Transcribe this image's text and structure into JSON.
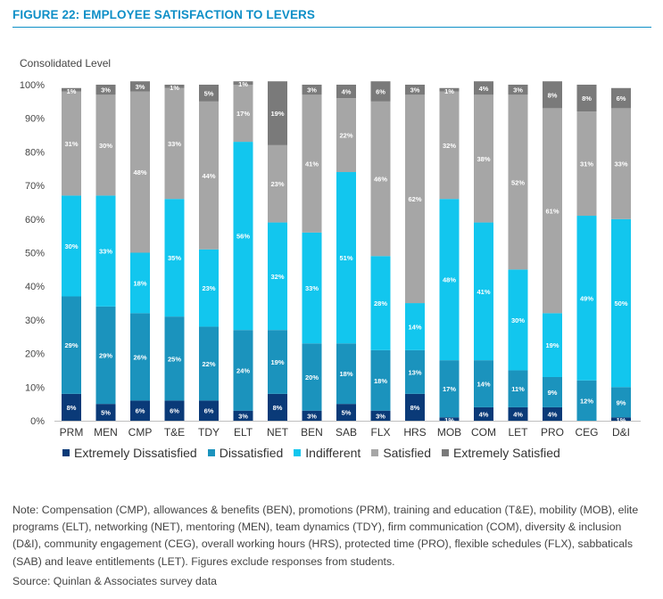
{
  "figure": {
    "title": "FIGURE 22: EMPLOYEE SATISFACTION TO LEVERS",
    "note": "Note: Compensation (CMP), allowances & benefits (BEN), promotions (PRM), training and education (T&E), mobility (MOB), elite programs (ELT), networking (NET), mentoring (MEN), team dynamics (TDY), firm communication (COM), diversity & inclusion (D&I), community engagement (CEG), overall working hours (HRS), protected time (PRO), flexible schedules (FLX), sabbaticals (SAB) and leave entitlements (LET). Figures exclude responses from students.",
    "source": "Source: Quinlan & Associates survey data"
  },
  "chart_data": {
    "type": "bar",
    "stacked": true,
    "percent": true,
    "ylabel": "Consolidated Level",
    "ylim": [
      0,
      100
    ],
    "yticks": [
      "0%",
      "10%",
      "20%",
      "30%",
      "40%",
      "50%",
      "60%",
      "70%",
      "80%",
      "90%",
      "100%"
    ],
    "grid": false,
    "legend_position": "bottom",
    "categories": [
      "PRM",
      "MEN",
      "CMP",
      "T&E",
      "TDY",
      "ELT",
      "NET",
      "BEN",
      "SAB",
      "FLX",
      "HRS",
      "MOB",
      "COM",
      "LET",
      "PRO",
      "CEG",
      "D&I"
    ],
    "series": [
      {
        "name": "Extremely Dissatisfied",
        "color": "#0a3a78",
        "values": [
          8,
          5,
          6,
          6,
          6,
          3,
          8,
          3,
          5,
          3,
          8,
          1,
          4,
          4,
          4,
          0,
          1
        ],
        "labels": [
          "8%",
          "5%",
          "6%",
          "6%",
          "6%",
          "3%",
          "8%",
          "3%",
          "5%",
          "3%",
          "8%",
          "1%",
          "4%",
          "4%",
          "4%",
          "",
          "1%"
        ]
      },
      {
        "name": "Dissatisfied",
        "color": "#1b93bd",
        "values": [
          29,
          29,
          26,
          25,
          22,
          24,
          19,
          20,
          18,
          18,
          13,
          17,
          14,
          11,
          9,
          12,
          9
        ],
        "labels": [
          "29%",
          "29%",
          "26%",
          "25%",
          "22%",
          "24%",
          "19%",
          "20%",
          "18%",
          "18%",
          "13%",
          "17%",
          "14%",
          "11%",
          "9%",
          "12%",
          "9%"
        ]
      },
      {
        "name": "Indifferent",
        "color": "#12c6ee",
        "values": [
          30,
          33,
          18,
          35,
          23,
          56,
          32,
          33,
          51,
          28,
          14,
          48,
          41,
          30,
          19,
          49,
          50
        ],
        "labels": [
          "30%",
          "33%",
          "18%",
          "35%",
          "23%",
          "56%",
          "32%",
          "33%",
          "51%",
          "28%",
          "14%",
          "48%",
          "41%",
          "30%",
          "19%",
          "49%",
          "50%"
        ]
      },
      {
        "name": "Satisfied",
        "color": "#a6a6a6",
        "values": [
          31,
          30,
          48,
          33,
          44,
          17,
          23,
          41,
          22,
          46,
          62,
          32,
          38,
          52,
          61,
          31,
          33
        ],
        "labels": [
          "31%",
          "30%",
          "48%",
          "33%",
          "44%",
          "17%",
          "23%",
          "41%",
          "22%",
          "46%",
          "62%",
          "32%",
          "38%",
          "52%",
          "61%",
          "31%",
          "33%"
        ]
      },
      {
        "name": "Extremely Satisfied",
        "color": "#7a7a7a",
        "values": [
          1,
          3,
          3,
          1,
          5,
          1,
          19,
          3,
          4,
          6,
          3,
          1,
          4,
          3,
          8,
          8,
          6
        ],
        "labels": [
          "1%",
          "3%",
          "3%",
          "1%",
          "5%",
          "1%",
          "19%",
          "3%",
          "4%",
          "6%",
          "3%",
          "1%",
          "4%",
          "3%",
          "8%",
          "8%",
          "6%"
        ]
      }
    ]
  }
}
